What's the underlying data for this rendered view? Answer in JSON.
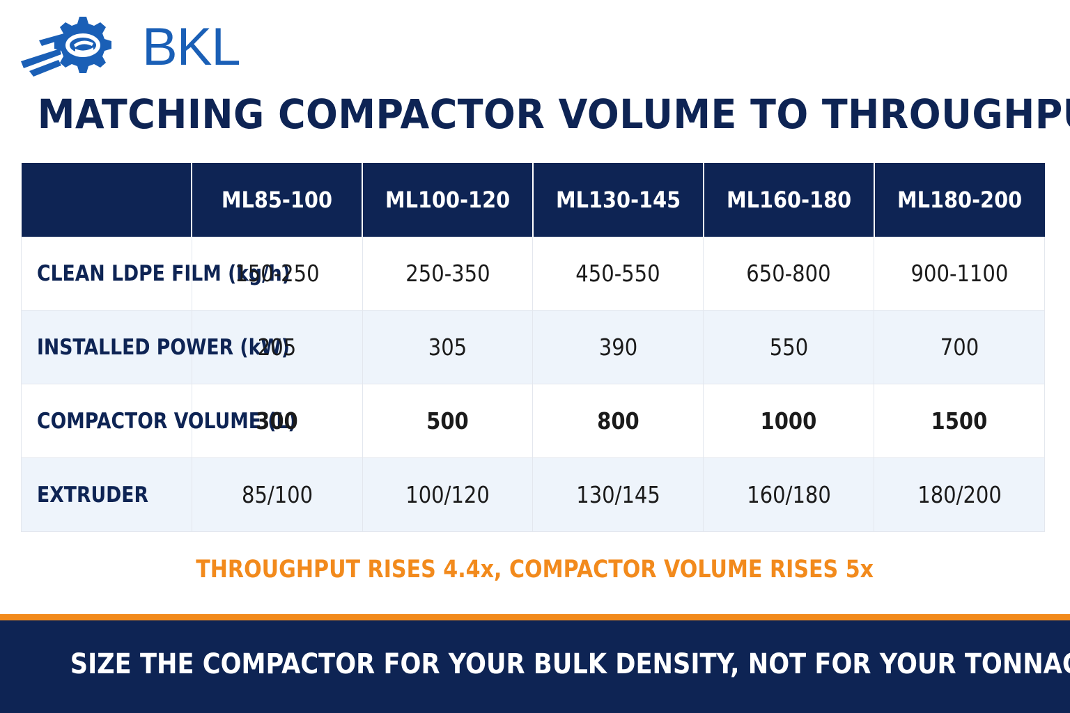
{
  "brand": {
    "name": "BKL",
    "logo_icon": "gear-logo-icon",
    "color": "#1a5fb6"
  },
  "title": "MATCHING COMPACTOR VOLUME TO THROUGHPUT",
  "table": {
    "header": [
      "",
      "ML85-100",
      "ML100-120",
      "ML130-145",
      "ML160-180",
      "ML180-200"
    ],
    "rows": [
      {
        "label": "CLEAN LDPE FILM (kg/h)",
        "values": [
          "150-250",
          "250-350",
          "450-550",
          "650-800",
          "900-1100"
        ],
        "highlight": false
      },
      {
        "label": "INSTALLED POWER (kW)",
        "values": [
          "205",
          "305",
          "390",
          "550",
          "700"
        ],
        "highlight": false
      },
      {
        "label": "COMPACTOR VOLUME (L)",
        "values": [
          "300",
          "500",
          "800",
          "1000",
          "1500"
        ],
        "highlight": true
      },
      {
        "label": "EXTRUDER",
        "values": [
          "85/100",
          "100/120",
          "130/145",
          "160/180",
          "180/200"
        ],
        "highlight": false
      }
    ]
  },
  "note": "THROUGHPUT RISES 4.4x, COMPACTOR VOLUME RISES 5x",
  "footer": "SIZE THE COMPACTOR FOR YOUR BULK DENSITY, NOT FOR YOUR TONNAGE",
  "colors": {
    "navy": "#0e2454",
    "orange": "#f28a1c",
    "row_alt": "#eef4fb"
  }
}
